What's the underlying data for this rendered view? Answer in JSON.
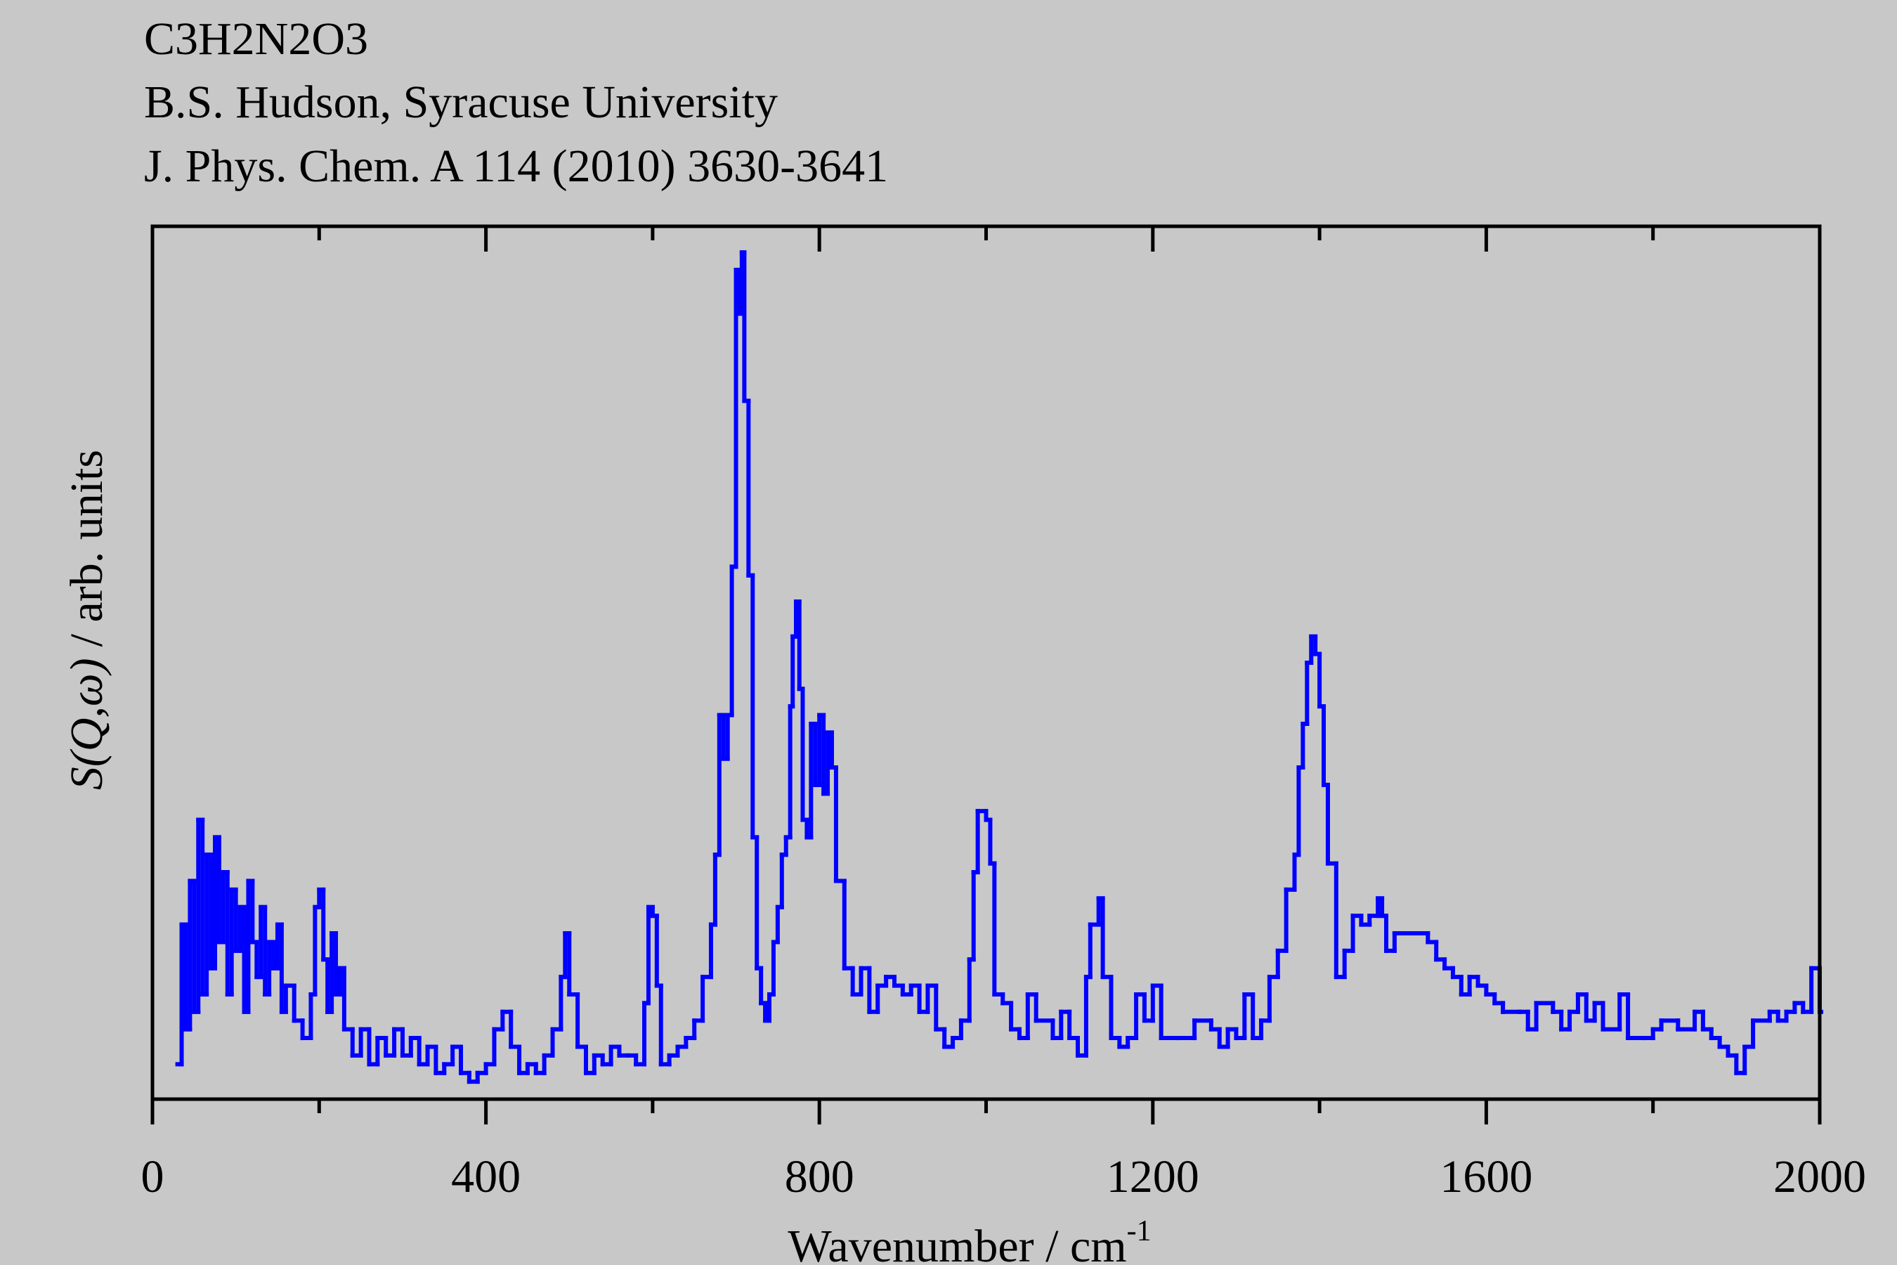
{
  "chart_data": {
    "type": "step",
    "title": "C3H2N2O3",
    "subtitle": [
      "B.S. Hudson, Syracuse University",
      "J. Phys. Chem. A 114 (2010) 3630-3641"
    ],
    "xlabel": "Wavenumber / cm",
    "xlabel_superscript": "-1",
    "ylabel": [
      "S(Q,ω)",
      "/ arb. units"
    ],
    "xlim": [
      0,
      2000
    ],
    "xticks": [
      0,
      400,
      800,
      1200,
      1600,
      2000
    ],
    "xminorticks": [
      200,
      600,
      1000,
      1400,
      1800
    ],
    "ylim": [
      0,
      100
    ],
    "color": "#0000ff",
    "x": [
      30,
      35,
      40,
      45,
      50,
      55,
      60,
      65,
      70,
      75,
      80,
      85,
      90,
      95,
      100,
      105,
      110,
      115,
      120,
      125,
      130,
      135,
      140,
      145,
      150,
      155,
      160,
      170,
      180,
      190,
      195,
      200,
      205,
      210,
      215,
      220,
      225,
      230,
      240,
      250,
      260,
      270,
      280,
      290,
      300,
      310,
      320,
      330,
      340,
      350,
      360,
      370,
      380,
      390,
      400,
      410,
      420,
      430,
      440,
      450,
      460,
      470,
      480,
      490,
      495,
      500,
      510,
      520,
      530,
      540,
      550,
      560,
      570,
      580,
      590,
      595,
      600,
      605,
      610,
      620,
      630,
      640,
      650,
      660,
      670,
      675,
      680,
      685,
      690,
      695,
      700,
      703,
      707,
      710,
      715,
      720,
      725,
      730,
      735,
      740,
      745,
      750,
      755,
      760,
      765,
      768,
      772,
      776,
      780,
      785,
      790,
      795,
      800,
      805,
      810,
      815,
      820,
      830,
      840,
      850,
      860,
      870,
      880,
      890,
      900,
      910,
      920,
      930,
      940,
      950,
      960,
      970,
      980,
      985,
      990,
      1000,
      1005,
      1010,
      1020,
      1030,
      1040,
      1050,
      1060,
      1080,
      1090,
      1100,
      1110,
      1120,
      1125,
      1135,
      1140,
      1150,
      1160,
      1170,
      1180,
      1190,
      1200,
      1210,
      1230,
      1250,
      1270,
      1280,
      1290,
      1300,
      1310,
      1320,
      1330,
      1340,
      1350,
      1360,
      1370,
      1375,
      1380,
      1385,
      1390,
      1395,
      1400,
      1405,
      1410,
      1420,
      1430,
      1440,
      1450,
      1460,
      1470,
      1475,
      1480,
      1490,
      1500,
      1520,
      1530,
      1540,
      1550,
      1560,
      1570,
      1580,
      1590,
      1600,
      1610,
      1620,
      1640,
      1650,
      1660,
      1680,
      1690,
      1700,
      1710,
      1720,
      1730,
      1740,
      1760,
      1770,
      1790,
      1800,
      1810,
      1830,
      1850,
      1860,
      1870,
      1880,
      1890,
      1900,
      1910,
      1920,
      1940,
      1950,
      1960,
      1970,
      1980,
      1990,
      2000
    ],
    "values": [
      4,
      20,
      8,
      25,
      10,
      32,
      12,
      28,
      15,
      30,
      18,
      26,
      12,
      24,
      17,
      22,
      10,
      25,
      18,
      14,
      22,
      12,
      18,
      15,
      20,
      10,
      13,
      9,
      7,
      12,
      22,
      24,
      16,
      10,
      19,
      12,
      15,
      8,
      5,
      8,
      4,
      7,
      5,
      8,
      5,
      7,
      4,
      6,
      3,
      4,
      6,
      3,
      2,
      3,
      4,
      8,
      10,
      6,
      3,
      4,
      3,
      5,
      8,
      14,
      19,
      12,
      6,
      3,
      5,
      4,
      6,
      5,
      5,
      4,
      11,
      22,
      21,
      13,
      4,
      5,
      6,
      7,
      9,
      14,
      20,
      28,
      44,
      39,
      44,
      61,
      95,
      90,
      97,
      80,
      60,
      30,
      15,
      11,
      9,
      12,
      18,
      22,
      28,
      30,
      45,
      53,
      57,
      47,
      32,
      30,
      43,
      36,
      44,
      35,
      42,
      38,
      25,
      15,
      12,
      15,
      10,
      13,
      14,
      13,
      12,
      13,
      10,
      13,
      8,
      6,
      7,
      9,
      16,
      26,
      33,
      32,
      27,
      12,
      11,
      8,
      7,
      12,
      9,
      7,
      10,
      7,
      5,
      14,
      20,
      23,
      14,
      7,
      6,
      7,
      12,
      9,
      13,
      7,
      7,
      9,
      8,
      6,
      8,
      7,
      12,
      7,
      9,
      14,
      17,
      24,
      28,
      38,
      43,
      50,
      53,
      51,
      45,
      36,
      27,
      14,
      17,
      21,
      20,
      21,
      23,
      21,
      17,
      19,
      19,
      19,
      18,
      16,
      15,
      14,
      12,
      14,
      13,
      12,
      11,
      10,
      10,
      8,
      11,
      10,
      8,
      10,
      12,
      9,
      11,
      8,
      12,
      7,
      7,
      8,
      9,
      8,
      10,
      8,
      7,
      6,
      5,
      3,
      6,
      9,
      10,
      9,
      10,
      11,
      10,
      15,
      10
    ]
  }
}
